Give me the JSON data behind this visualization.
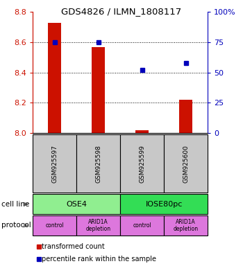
{
  "title": "GDS4826 / ILMN_1808117",
  "samples": [
    "GSM925597",
    "GSM925598",
    "GSM925599",
    "GSM925600"
  ],
  "transformed_counts": [
    8.73,
    8.57,
    8.02,
    8.22
  ],
  "percentile_ranks": [
    75,
    75,
    52,
    58
  ],
  "ylim": [
    8.0,
    8.8
  ],
  "yticks_left": [
    8.0,
    8.2,
    8.4,
    8.6,
    8.8
  ],
  "yticks_right": [
    0,
    25,
    50,
    75,
    100
  ],
  "cell_lines": [
    [
      "OSE4",
      0,
      1
    ],
    [
      "IOSE80pc",
      2,
      3
    ]
  ],
  "cell_line_colors": [
    "#90EE90",
    "#33DD55"
  ],
  "protocols": [
    "control",
    "ARID1A\ndepletion",
    "control",
    "ARID1A\ndepletion"
  ],
  "protocol_color": "#DD77DD",
  "sample_box_color": "#C8C8C8",
  "bar_color": "#CC1100",
  "dot_color": "#0000BB",
  "legend_labels": [
    "transformed count",
    "percentile rank within the sample"
  ],
  "ylabel_left_color": "#CC1100",
  "ylabel_right_color": "#0000BB",
  "cell_line_label": "cell line",
  "protocol_label": "protocol",
  "arrow_color": "#888888"
}
